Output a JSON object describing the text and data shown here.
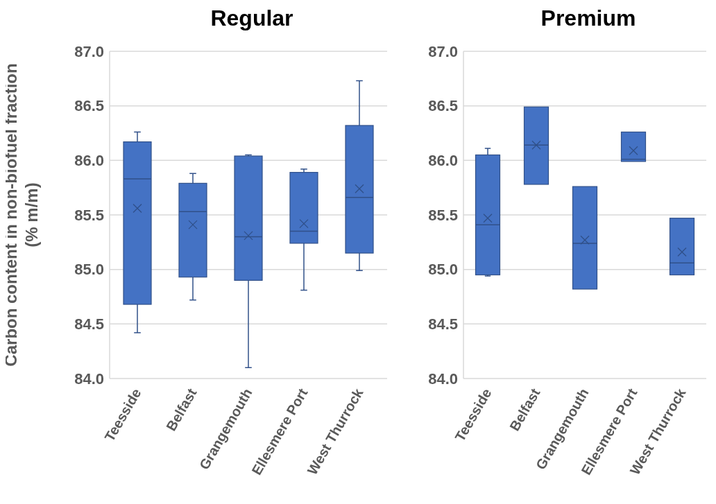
{
  "chart_data": [
    {
      "type": "box",
      "title": "Regular",
      "ylabel": "Carbon content in non-biofuel fraction (% m/m)",
      "categories": [
        "Teesside",
        "Belfast",
        "Grangemouth",
        "Ellesmere Port",
        "West Thurrock"
      ],
      "color": "#4472c4",
      "marker": "cross",
      "grid": "y",
      "ylim": [
        84,
        87
      ],
      "yticks": [
        {
          "value": 84,
          "label": "84.0"
        },
        84.5,
        {
          "value": 85,
          "label": "85.0"
        },
        85.5,
        {
          "value": 86,
          "label": "86.0"
        },
        86.5,
        {
          "value": 87,
          "label": "87.0"
        }
      ],
      "boxes": [
        {
          "low": 84.42,
          "q1": 84.68,
          "median": 85.83,
          "q3": 86.17,
          "high": 86.26,
          "mean": 85.56
        },
        {
          "low": 84.72,
          "q1": 84.93,
          "median": 85.53,
          "q3": 85.79,
          "high": 85.88,
          "mean": 85.41
        },
        {
          "low": 84.1,
          "q1": 84.9,
          "median": 85.3,
          "q3": 86.04,
          "high": 86.05,
          "mean": 85.31
        },
        {
          "low": 84.81,
          "q1": 85.24,
          "median": 85.35,
          "q3": 85.89,
          "high": 85.92,
          "mean": 85.42
        },
        {
          "low": 84.99,
          "q1": 85.15,
          "median": 85.66,
          "q3": 86.32,
          "high": 86.73,
          "mean": 85.74
        }
      ]
    },
    {
      "type": "box",
      "title": "Premium",
      "categories": [
        "Teesside",
        "Belfast",
        "Grangemouth",
        "Ellesmere Port",
        "West Thurrock"
      ],
      "color": "#4472c4",
      "marker": "cross",
      "grid": "y",
      "ylim": [
        84,
        87
      ],
      "yticks": [
        {
          "value": 84,
          "label": "84.0"
        },
        84.5,
        {
          "value": 85,
          "label": "85.0"
        },
        85.5,
        {
          "value": 86,
          "label": "86.0"
        },
        86.5,
        {
          "value": 87,
          "label": "87.0"
        }
      ],
      "boxes": [
        {
          "low": 84.94,
          "q1": 84.95,
          "median": 85.41,
          "q3": 86.05,
          "high": 86.11,
          "mean": 85.47
        },
        {
          "low": 85.78,
          "q1": 85.78,
          "median": 86.14,
          "q3": 86.49,
          "high": 86.49,
          "mean": 86.14
        },
        {
          "low": 84.82,
          "q1": 84.82,
          "median": 85.24,
          "q3": 85.76,
          "high": 85.76,
          "mean": 85.27
        },
        {
          "low": 85.99,
          "q1": 85.99,
          "median": 86.01,
          "q3": 86.26,
          "high": 86.26,
          "mean": 86.09
        },
        {
          "low": 84.95,
          "q1": 84.95,
          "median": 85.06,
          "q3": 85.47,
          "high": 85.47,
          "mean": 85.16
        }
      ]
    }
  ]
}
